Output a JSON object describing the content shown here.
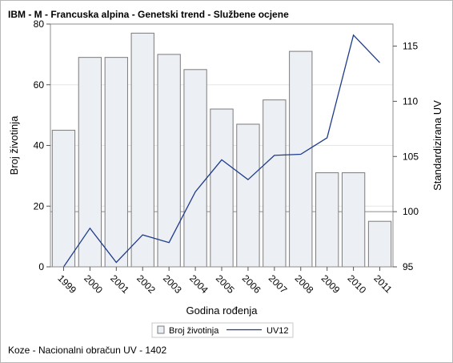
{
  "chart_data": {
    "type": "bar",
    "title": "IBM - M - Francuska alpina - Genetski trend - Službene ocjene",
    "xlabel": "Godina rođenja",
    "ylabel": "Broj životinja",
    "y2label": "Standardizirana UV",
    "categories": [
      "1999",
      "2000",
      "2001",
      "2002",
      "2003",
      "2004",
      "2005",
      "2006",
      "2007",
      "2008",
      "2009",
      "2010",
      "2011"
    ],
    "ylim": [
      0,
      80
    ],
    "yticks": [
      0,
      20,
      40,
      60,
      80
    ],
    "y2lim": [
      95,
      117
    ],
    "y2ticks": [
      95,
      100,
      105,
      110,
      115
    ],
    "reference_line_y2": 100,
    "series": [
      {
        "name": "Broj životinja",
        "kind": "bar",
        "axis": "left",
        "values": [
          45,
          69,
          69,
          77,
          70,
          65,
          52,
          47,
          55,
          71,
          31,
          31,
          15
        ],
        "fill": "#eceff4",
        "stroke": "#7b7b7b"
      },
      {
        "name": "UV12",
        "kind": "line",
        "axis": "right",
        "values": [
          95.0,
          98.5,
          95.4,
          97.9,
          97.2,
          101.8,
          104.7,
          102.9,
          105.1,
          105.2,
          106.7,
          116.0,
          113.5
        ],
        "color": "#1f3c8c"
      }
    ],
    "grid": "horizontal",
    "legend_position": "bottom",
    "footnote": "Koze - Nacionalni obračun UV - 1402"
  }
}
